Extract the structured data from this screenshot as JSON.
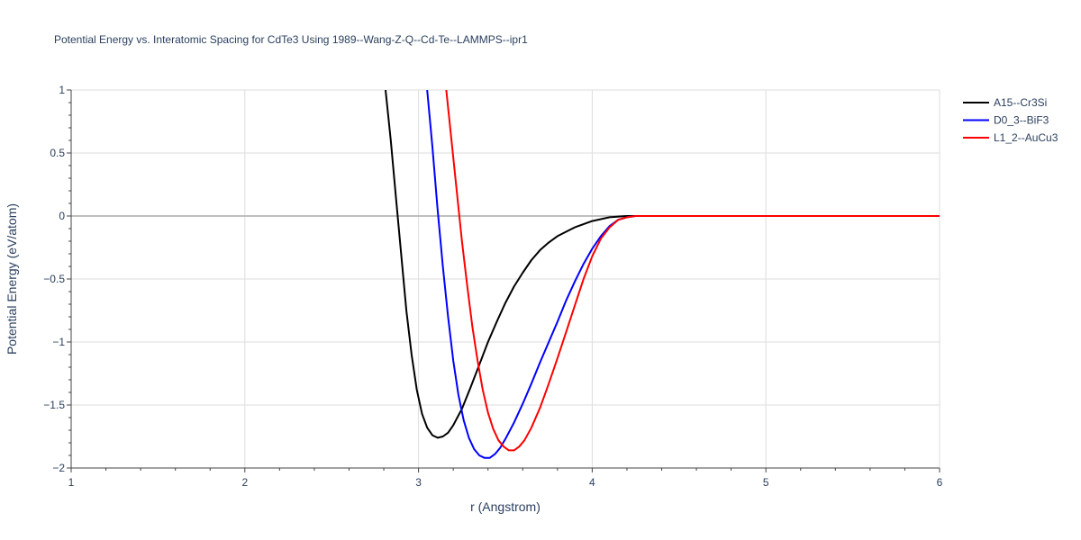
{
  "chart_data": {
    "type": "line",
    "title": "Potential Energy vs. Interatomic Spacing for CdTe3 Using 1989--Wang-Z-Q--Cd-Te--LAMMPS--ipr1",
    "xlabel": "r (Angstrom)",
    "ylabel": "Potential Energy (eV/atom)",
    "xlim": [
      1,
      6
    ],
    "ylim": [
      -2,
      1
    ],
    "x_ticks": [
      1,
      2,
      3,
      4,
      5,
      6
    ],
    "x_tick_labels": [
      "1",
      "2",
      "3",
      "4",
      "5",
      "6"
    ],
    "y_ticks": [
      1,
      0.5,
      0,
      -0.5,
      -1,
      -1.5,
      -2
    ],
    "y_tick_labels": [
      "1",
      "0.5",
      "0",
      "−0.5",
      "−1",
      "−1.5",
      "−2"
    ],
    "grid": true,
    "legend_position": "top-right",
    "series": [
      {
        "name": "A15--Cr3Si",
        "color": "#000000",
        "points": [
          [
            2.81,
            1.0
          ],
          [
            2.84,
            0.6
          ],
          [
            2.87,
            0.15
          ],
          [
            2.9,
            -0.3
          ],
          [
            2.93,
            -0.75
          ],
          [
            2.96,
            -1.1
          ],
          [
            2.99,
            -1.38
          ],
          [
            3.02,
            -1.57
          ],
          [
            3.05,
            -1.68
          ],
          [
            3.08,
            -1.74
          ],
          [
            3.11,
            -1.76
          ],
          [
            3.14,
            -1.75
          ],
          [
            3.17,
            -1.72
          ],
          [
            3.2,
            -1.66
          ],
          [
            3.25,
            -1.53
          ],
          [
            3.3,
            -1.36
          ],
          [
            3.35,
            -1.18
          ],
          [
            3.4,
            -1.0
          ],
          [
            3.45,
            -0.84
          ],
          [
            3.5,
            -0.69
          ],
          [
            3.55,
            -0.56
          ],
          [
            3.6,
            -0.45
          ],
          [
            3.65,
            -0.35
          ],
          [
            3.7,
            -0.27
          ],
          [
            3.75,
            -0.21
          ],
          [
            3.8,
            -0.16
          ],
          [
            3.9,
            -0.09
          ],
          [
            4.0,
            -0.04
          ],
          [
            4.1,
            -0.01
          ],
          [
            4.2,
            0.0
          ],
          [
            4.3,
            0.0
          ],
          [
            5.0,
            0.0
          ],
          [
            6.0,
            0.0
          ]
        ]
      },
      {
        "name": "D0_3--BiF3",
        "color": "#0000ff",
        "points": [
          [
            3.05,
            1.0
          ],
          [
            3.08,
            0.55
          ],
          [
            3.11,
            0.05
          ],
          [
            3.14,
            -0.4
          ],
          [
            3.17,
            -0.8
          ],
          [
            3.2,
            -1.15
          ],
          [
            3.23,
            -1.42
          ],
          [
            3.26,
            -1.62
          ],
          [
            3.29,
            -1.76
          ],
          [
            3.32,
            -1.85
          ],
          [
            3.35,
            -1.9
          ],
          [
            3.38,
            -1.92
          ],
          [
            3.41,
            -1.92
          ],
          [
            3.44,
            -1.89
          ],
          [
            3.47,
            -1.84
          ],
          [
            3.5,
            -1.77
          ],
          [
            3.55,
            -1.64
          ],
          [
            3.6,
            -1.49
          ],
          [
            3.65,
            -1.33
          ],
          [
            3.7,
            -1.16
          ],
          [
            3.75,
            -1.0
          ],
          [
            3.8,
            -0.84
          ],
          [
            3.85,
            -0.67
          ],
          [
            3.9,
            -0.52
          ],
          [
            3.95,
            -0.38
          ],
          [
            4.0,
            -0.26
          ],
          [
            4.05,
            -0.16
          ],
          [
            4.1,
            -0.08
          ],
          [
            4.15,
            -0.03
          ],
          [
            4.2,
            -0.01
          ],
          [
            4.25,
            0.0
          ],
          [
            5.0,
            0.0
          ],
          [
            6.0,
            0.0
          ]
        ]
      },
      {
        "name": "L1_2--AuCu3",
        "color": "#ff0000",
        "points": [
          [
            3.16,
            1.0
          ],
          [
            3.19,
            0.6
          ],
          [
            3.22,
            0.2
          ],
          [
            3.25,
            -0.2
          ],
          [
            3.28,
            -0.55
          ],
          [
            3.31,
            -0.88
          ],
          [
            3.34,
            -1.15
          ],
          [
            3.37,
            -1.38
          ],
          [
            3.4,
            -1.56
          ],
          [
            3.43,
            -1.69
          ],
          [
            3.46,
            -1.78
          ],
          [
            3.49,
            -1.83
          ],
          [
            3.52,
            -1.86
          ],
          [
            3.55,
            -1.86
          ],
          [
            3.58,
            -1.83
          ],
          [
            3.61,
            -1.78
          ],
          [
            3.65,
            -1.68
          ],
          [
            3.7,
            -1.52
          ],
          [
            3.75,
            -1.33
          ],
          [
            3.8,
            -1.13
          ],
          [
            3.85,
            -0.92
          ],
          [
            3.9,
            -0.71
          ],
          [
            3.95,
            -0.5
          ],
          [
            4.0,
            -0.32
          ],
          [
            4.05,
            -0.18
          ],
          [
            4.1,
            -0.09
          ],
          [
            4.15,
            -0.03
          ],
          [
            4.2,
            -0.01
          ],
          [
            4.25,
            0.0
          ],
          [
            5.0,
            0.0
          ],
          [
            6.0,
            0.0
          ]
        ]
      }
    ]
  }
}
